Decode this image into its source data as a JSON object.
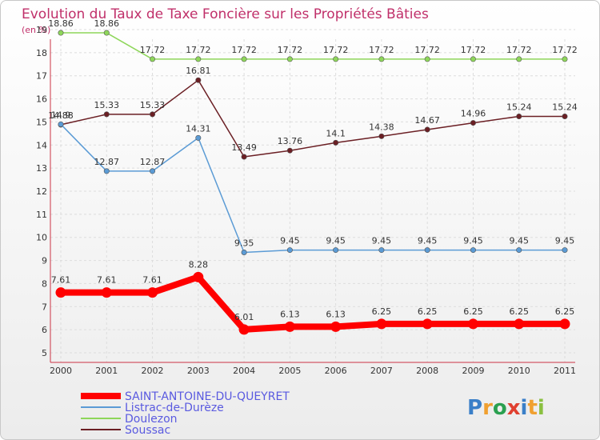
{
  "chart_data": {
    "type": "line",
    "title": "Evolution du Taux de Taxe Foncière sur les Propriétés Bâties",
    "ylabel": "(en %)",
    "xlabel": "",
    "ylim": [
      5,
      19
    ],
    "yticks": [
      "5",
      "6",
      "7",
      "8",
      "9",
      "10",
      "11",
      "12",
      "13",
      "14",
      "15",
      "16",
      "17",
      "18",
      "19"
    ],
    "categories": [
      "2000",
      "2001",
      "2002",
      "2003",
      "2004",
      "2005",
      "2006",
      "2007",
      "2008",
      "2009",
      "2010",
      "2011"
    ],
    "grid": true,
    "series": [
      {
        "name": "SAINT-ANTOINE-DU-QUEYRET",
        "color": "#ff0000",
        "values": [
          7.61,
          7.61,
          7.61,
          8.28,
          6.01,
          6.13,
          6.13,
          6.25,
          6.25,
          6.25,
          6.25,
          6.25
        ],
        "labels": [
          "7.61",
          "7.61",
          "7.61",
          "8.28",
          "6.01",
          "6.13",
          "6.13",
          "6.25",
          "6.25",
          "6.25",
          "6.25",
          "6.25"
        ]
      },
      {
        "name": "Listrac-de-Durèze",
        "color": "#5b9bd5",
        "values": [
          14.9,
          12.87,
          12.87,
          14.31,
          9.35,
          9.45,
          9.45,
          9.45,
          9.45,
          9.45,
          9.45,
          9.45
        ],
        "labels": [
          "14.9",
          "12.87",
          "12.87",
          "14.31",
          "9.35",
          "9.45",
          "9.45",
          "9.45",
          "9.45",
          "9.45",
          "9.45",
          "9.45"
        ]
      },
      {
        "name": "Doulezon",
        "color": "#8ed65a",
        "values": [
          18.86,
          18.86,
          17.72,
          17.72,
          17.72,
          17.72,
          17.72,
          17.72,
          17.72,
          17.72,
          17.72,
          17.72
        ],
        "labels": [
          "18.86",
          "18.86",
          "17.72",
          "17.72",
          "17.72",
          "17.72",
          "17.72",
          "17.72",
          "17.72",
          "17.72",
          "17.72",
          "17.72"
        ]
      },
      {
        "name": "Soussac",
        "color": "#6b1f24",
        "values": [
          14.88,
          15.33,
          15.33,
          16.81,
          13.49,
          13.76,
          14.1,
          14.38,
          14.67,
          14.96,
          15.24,
          15.24
        ],
        "labels": [
          "14.88",
          "15.33",
          "15.33",
          "16.81",
          "13.49",
          "13.76",
          "14.1",
          "14.38",
          "14.67",
          "14.96",
          "15.24",
          "15.24"
        ]
      }
    ],
    "legend_position": "bottom-left"
  },
  "logo": {
    "text": "Proxiti"
  }
}
